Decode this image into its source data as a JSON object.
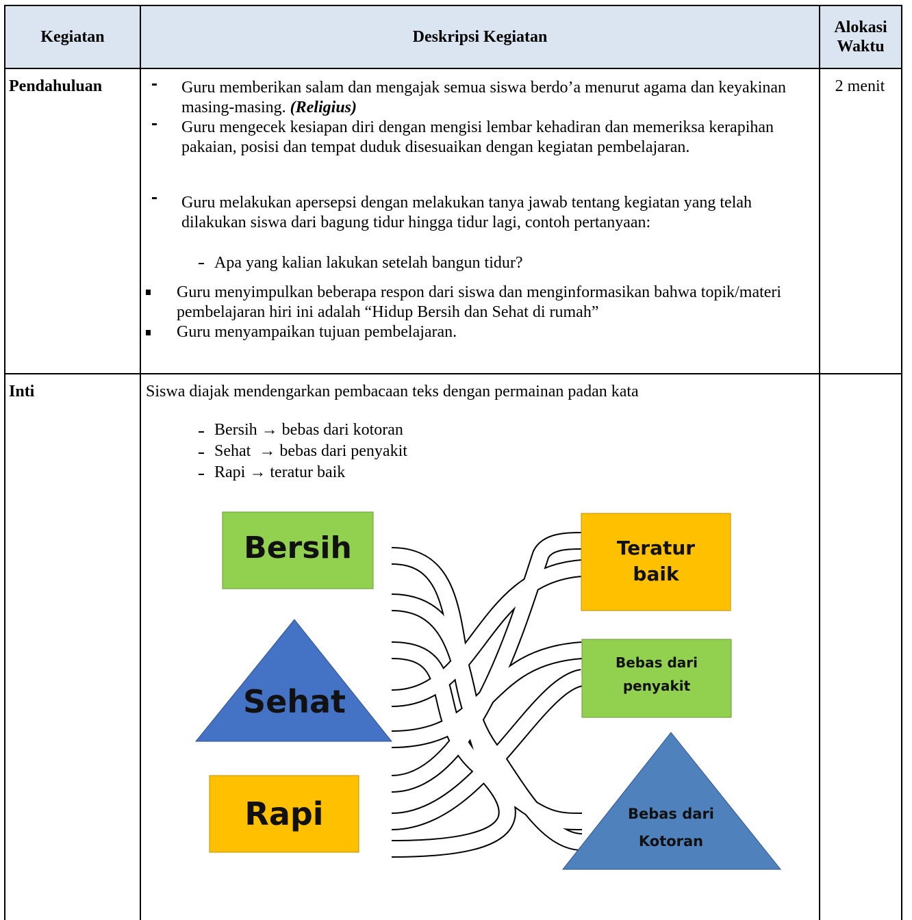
{
  "table": {
    "headers": [
      "Kegiatan",
      "Deskripsi Kegiatan",
      "Alokasi Waktu"
    ],
    "rows": [
      {
        "kegiatan": "Pendahuluan",
        "items": [
          {
            "text": "Guru memberikan salam dan mengajak semua siswa berdo’a menurut agama dan keyakinan masing-masing.",
            "emphasis": "(Religius)"
          },
          {
            "text": "Guru mengecek kesiapan diri dengan mengisi lembar kehadiran dan memeriksa kerapihan pakaian, posisi dan tempat duduk disesuaikan dengan kegiatan pembelajaran."
          },
          {
            "text": "Guru melakukan apersepsi dengan melakukan tanya jawab tentang kegiatan yang telah dilakukan siswa dari bagung tidur hingga tidur lagi, contoh pertanyaan:",
            "sub": "Apa yang kalian lakukan setelah bangun tidur?"
          },
          {
            "text": "Guru menyimpulkan beberapa respon dari siswa dan menginformasikan bahwa topik/materi pembelajaran hiri ini adalah “Hidup Bersih dan Sehat di rumah”"
          },
          {
            "text": "Guru menyampaikan tujuan pembelajaran."
          }
        ],
        "waktu": "2 menit"
      },
      {
        "kegiatan": "Inti",
        "intro": "Siswa diajak mendengarkan pembacaan teks dengan permainan padan kata",
        "pairs": [
          "Bersih → bebas dari kotoran",
          "Sehat  → bebas dari penyakit",
          "Rapi → teratur baik"
        ],
        "diagram": {
          "left": [
            "Bersih",
            "Sehat",
            "Rapi"
          ],
          "right": [
            "Teratur baik",
            "Bebas dari penyakit",
            "Bebas dari Kotoran"
          ]
        }
      }
    ]
  }
}
